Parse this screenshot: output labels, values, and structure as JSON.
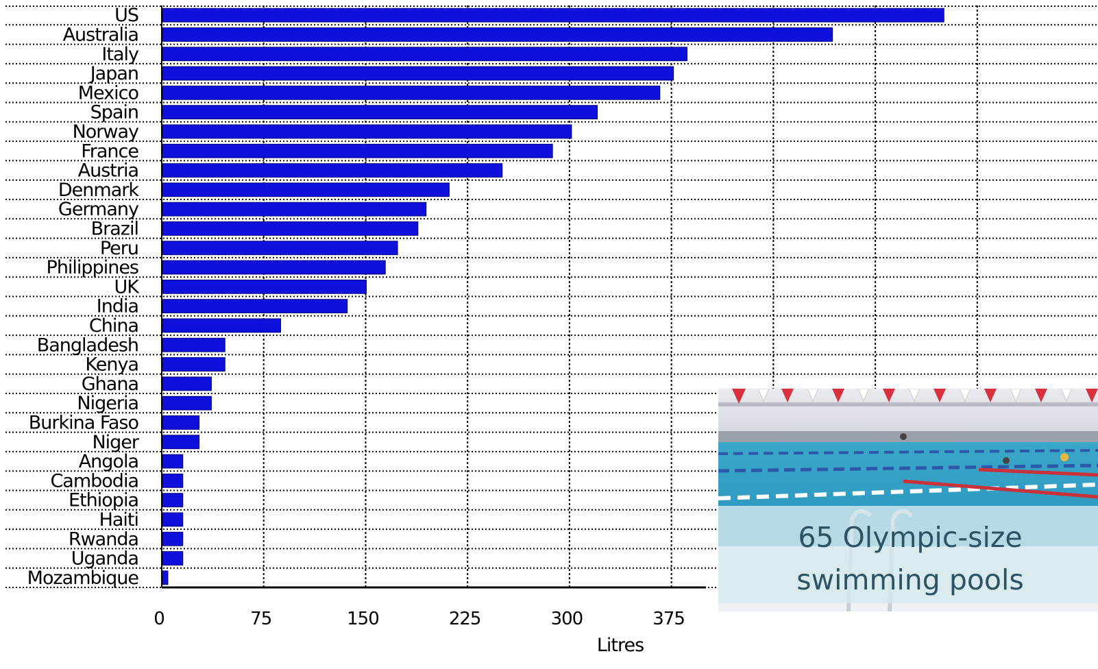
{
  "chart_data": {
    "type": "bar",
    "orientation": "horizontal",
    "categories": [
      "US",
      "Australia",
      "Italy",
      "Japan",
      "Mexico",
      "Spain",
      "Norway",
      "France",
      "Austria",
      "Denmark",
      "Germany",
      "Brazil",
      "Peru",
      "Philippines",
      "UK",
      "India",
      "China",
      "Bangladesh",
      "Kenya",
      "Ghana",
      "Nigeria",
      "Burkina Faso",
      "Niger",
      "Angola",
      "Cambodia",
      "Ethiopia",
      "Haiti",
      "Rwanda",
      "Uganda",
      "Mozambique"
    ],
    "values": [
      575,
      493,
      386,
      376,
      366,
      320,
      301,
      287,
      250,
      211,
      194,
      188,
      173,
      164,
      150,
      136,
      87,
      46,
      46,
      36,
      36,
      27,
      27,
      15,
      15,
      15,
      15,
      15,
      15,
      4
    ],
    "xlabel": "Litres",
    "ylabel": "",
    "xlim": [
      0,
      600
    ],
    "xticks": [
      0,
      75,
      150,
      225,
      300,
      375
    ],
    "grid": true,
    "bar_color": "#1010dd"
  },
  "overlay": {
    "caption_line1": "65 Olympic-size",
    "caption_line2": "swimming pools"
  }
}
